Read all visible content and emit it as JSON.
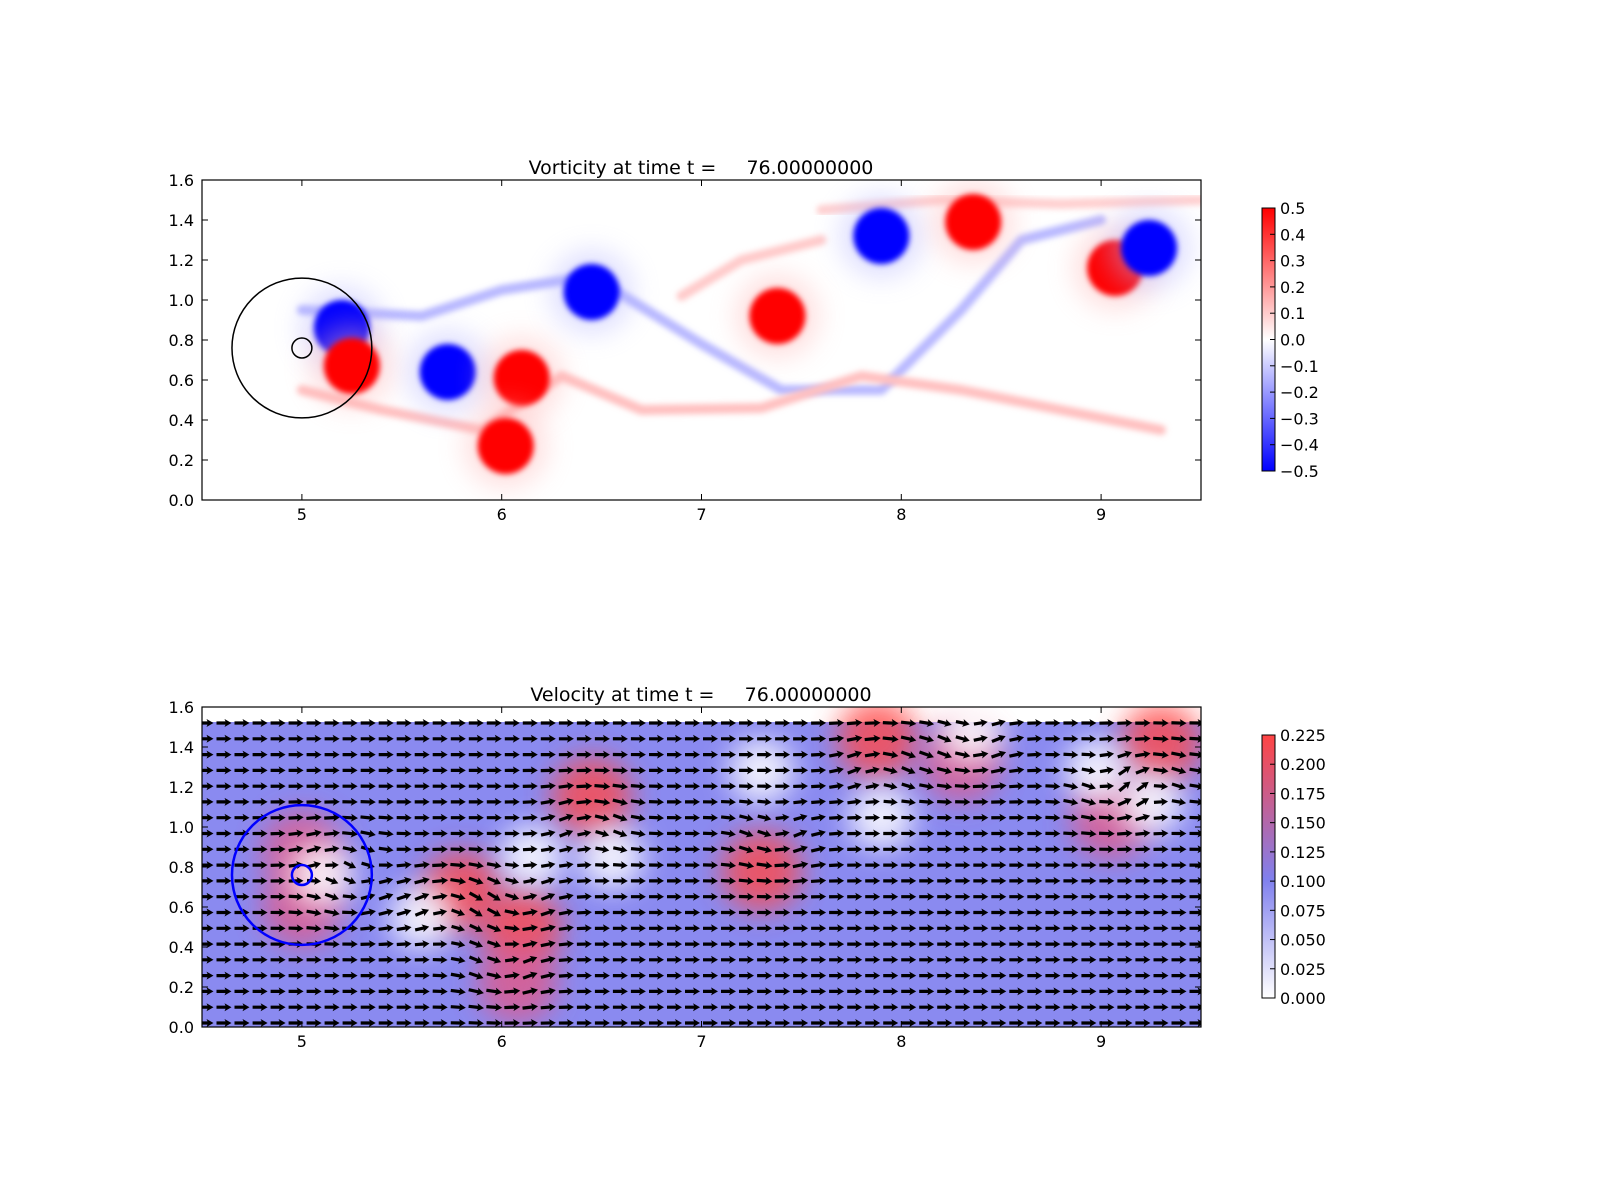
{
  "chart_data": [
    {
      "type": "heatmap",
      "title": "Vorticity at time t =     76.00000000",
      "xlim": [
        4.5,
        9.5
      ],
      "ylim": [
        0.0,
        1.6
      ],
      "x_ticks": [
        "5",
        "6",
        "7",
        "8",
        "9"
      ],
      "y_ticks": [
        "0.0",
        "0.2",
        "0.4",
        "0.6",
        "0.8",
        "1.0",
        "1.2",
        "1.4",
        "1.6"
      ],
      "colorbar": {
        "ticks": [
          "0.5",
          "0.4",
          "0.3",
          "0.2",
          "0.1",
          "0.0",
          "−0.1",
          "−0.2",
          "−0.3",
          "−0.4",
          "−0.5"
        ],
        "range": [
          -0.5,
          0.5
        ],
        "low_color": "#0000ff",
        "mid_color": "#ffffff",
        "high_color": "#ff0000"
      },
      "vortices": [
        {
          "x": 5.2,
          "y": 0.86,
          "sign": -1
        },
        {
          "x": 5.25,
          "y": 0.67,
          "sign": 1
        },
        {
          "x": 5.73,
          "y": 0.64,
          "sign": -1
        },
        {
          "x": 6.1,
          "y": 0.61,
          "sign": 1
        },
        {
          "x": 6.45,
          "y": 1.04,
          "sign": -1
        },
        {
          "x": 7.38,
          "y": 0.92,
          "sign": 1
        },
        {
          "x": 7.9,
          "y": 1.32,
          "sign": -1
        },
        {
          "x": 8.36,
          "y": 1.39,
          "sign": 1
        },
        {
          "x": 9.07,
          "y": 1.16,
          "sign": 1
        },
        {
          "x": 9.24,
          "y": 1.26,
          "sign": -1
        },
        {
          "x": 6.02,
          "y": 0.27,
          "sign": 1
        }
      ],
      "circles": [
        {
          "cx": 5.0,
          "cy": 0.76,
          "r": 0.35,
          "color": "#000000"
        },
        {
          "cx": 5.0,
          "cy": 0.76,
          "r": 0.05,
          "color": "#000000"
        }
      ]
    },
    {
      "type": "heatmap",
      "title": "Velocity at time t =     76.00000000",
      "xlim": [
        4.5,
        9.5
      ],
      "ylim": [
        0.0,
        1.6
      ],
      "x_ticks": [
        "5",
        "6",
        "7",
        "8",
        "9"
      ],
      "y_ticks": [
        "0.0",
        "0.2",
        "0.4",
        "0.6",
        "0.8",
        "1.0",
        "1.2",
        "1.4",
        "1.6"
      ],
      "colorbar": {
        "ticks": [
          "0.225",
          "0.200",
          "0.175",
          "0.150",
          "0.125",
          "0.100",
          "0.075",
          "0.050",
          "0.025",
          "0.000"
        ],
        "range": [
          0.0,
          0.225
        ],
        "low_color": "#ffffff",
        "mid_color": "#8080ee",
        "high_color": "#ff4444"
      },
      "base_speed": 0.1,
      "fast_regions": [
        {
          "x": 5.0,
          "y": 0.88,
          "v": 0.17
        },
        {
          "x": 5.0,
          "y": 0.6,
          "v": 0.17
        },
        {
          "x": 5.8,
          "y": 0.68,
          "v": 0.2
        },
        {
          "x": 6.1,
          "y": 0.5,
          "v": 0.21
        },
        {
          "x": 6.08,
          "y": 0.22,
          "v": 0.19
        },
        {
          "x": 6.45,
          "y": 1.15,
          "v": 0.21
        },
        {
          "x": 7.3,
          "y": 0.78,
          "v": 0.2
        },
        {
          "x": 7.88,
          "y": 1.44,
          "v": 0.22
        },
        {
          "x": 8.3,
          "y": 1.33,
          "v": 0.18
        },
        {
          "x": 9.05,
          "y": 1.04,
          "v": 0.18
        },
        {
          "x": 9.3,
          "y": 1.42,
          "v": 0.2
        }
      ],
      "slow_regions": [
        {
          "x": 5.1,
          "y": 0.76,
          "v": 0.02
        },
        {
          "x": 5.6,
          "y": 0.55,
          "v": 0.04
        },
        {
          "x": 6.15,
          "y": 0.85,
          "v": 0.02
        },
        {
          "x": 6.55,
          "y": 0.85,
          "v": 0.03
        },
        {
          "x": 7.3,
          "y": 1.28,
          "v": 0.03
        },
        {
          "x": 7.9,
          "y": 1.05,
          "v": 0.03
        },
        {
          "x": 8.35,
          "y": 1.48,
          "v": 0.03
        },
        {
          "x": 9.25,
          "y": 1.12,
          "v": 0.03
        },
        {
          "x": 8.98,
          "y": 1.28,
          "v": 0.04
        }
      ],
      "circles": [
        {
          "cx": 5.0,
          "cy": 0.76,
          "r": 0.35,
          "color": "#0000ff"
        },
        {
          "cx": 5.0,
          "cy": 0.76,
          "r": 0.05,
          "color": "#0000ff"
        }
      ]
    }
  ]
}
